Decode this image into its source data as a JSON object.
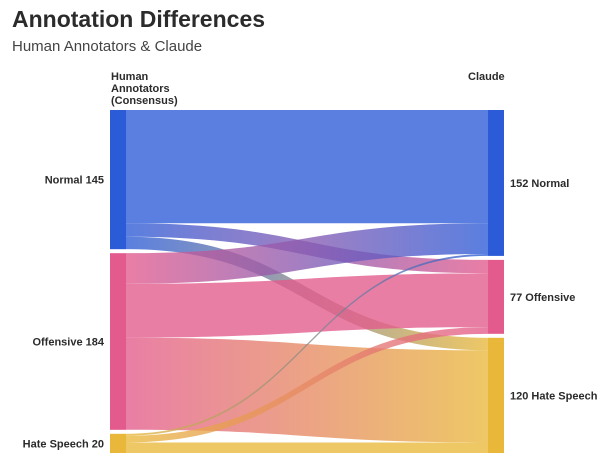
{
  "title": "Annotation Differences",
  "subtitle": "Human Annotators & Claude",
  "colors": {
    "normal": "#2b5bd7",
    "offensive": "#e35a8c",
    "hate": "#e9b83a"
  },
  "chart_data": {
    "type": "sankey",
    "left_header": [
      "Human",
      "Annotators",
      "(Consensus)"
    ],
    "right_header": "Claude",
    "left_nodes": [
      {
        "id": "normal",
        "name": "Normal",
        "value": 145,
        "label": "Normal 145"
      },
      {
        "id": "offensive",
        "name": "Offensive",
        "value": 184,
        "label": "Offensive 184"
      },
      {
        "id": "hate",
        "name": "Hate Speech",
        "value": 20,
        "label": "Hate Speech 20"
      }
    ],
    "right_nodes": [
      {
        "id": "normal",
        "name": "Normal",
        "value": 152,
        "label": "152 Normal"
      },
      {
        "id": "offensive",
        "name": "Offensive",
        "value": 77,
        "label": "77 Offensive"
      },
      {
        "id": "hate",
        "name": "Hate Speech",
        "value": 120,
        "label": "120 Hate Speech"
      }
    ],
    "flows": [
      {
        "source": "normal",
        "target": "normal",
        "value": 118
      },
      {
        "source": "normal",
        "target": "offensive",
        "value": 14
      },
      {
        "source": "normal",
        "target": "hate",
        "value": 13
      },
      {
        "source": "offensive",
        "target": "normal",
        "value": 32
      },
      {
        "source": "offensive",
        "target": "offensive",
        "value": 56
      },
      {
        "source": "offensive",
        "target": "hate",
        "value": 96
      },
      {
        "source": "hate",
        "target": "normal",
        "value": 2
      },
      {
        "source": "hate",
        "target": "offensive",
        "value": 7
      },
      {
        "source": "hate",
        "target": "hate",
        "value": 11
      }
    ]
  }
}
